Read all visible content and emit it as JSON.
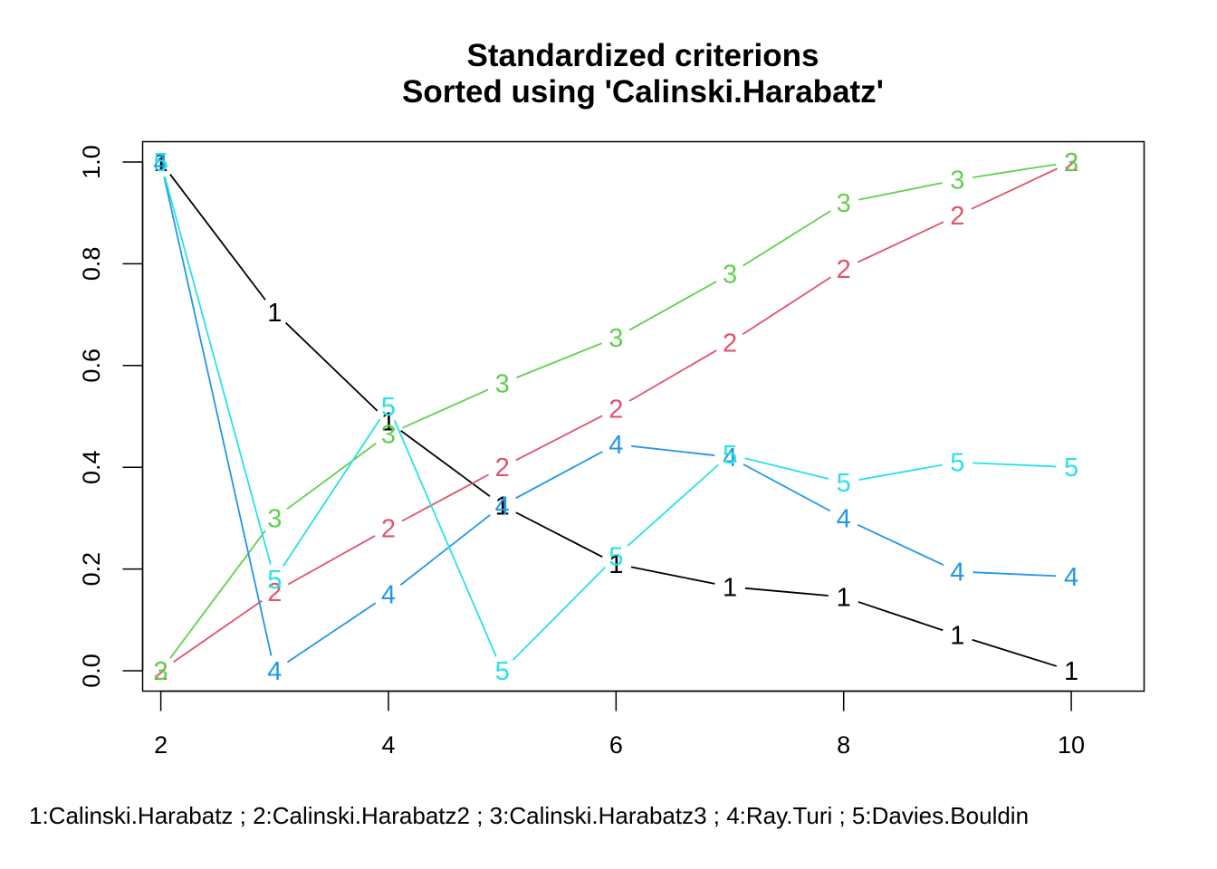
{
  "chart_data": {
    "type": "line",
    "title": "Standardized criterions",
    "subtitle": "Sorted using 'Calinski.Harabatz'",
    "caption": "1:Calinski.Harabatz ; 2:Calinski.Harabatz2 ; 3:Calinski.Harabatz3 ; 4:Ray.Turi ; 5:Davies.Bouldin",
    "x": [
      2,
      3,
      4,
      5,
      6,
      7,
      8,
      9,
      10
    ],
    "xlim": [
      1.84,
      10.64
    ],
    "ylim": [
      -0.04,
      1.04
    ],
    "xticks": [
      2,
      4,
      6,
      8,
      10
    ],
    "yticks": [
      0.0,
      0.2,
      0.4,
      0.6,
      0.8,
      1.0
    ],
    "xtick_labels": [
      "2",
      "4",
      "6",
      "8",
      "10"
    ],
    "ytick_labels": [
      "0.0",
      "0.2",
      "0.4",
      "0.6",
      "0.8",
      "1.0"
    ],
    "grid": false,
    "legend": "none",
    "series": [
      {
        "name": "Calinski.Harabatz",
        "marker": "1",
        "color": "#000000",
        "values": [
          1.0,
          0.705,
          0.49,
          0.325,
          0.21,
          0.165,
          0.145,
          0.07,
          0.0
        ]
      },
      {
        "name": "Calinski.Harabatz2",
        "marker": "2",
        "color": "#DF536B",
        "values": [
          0.0,
          0.155,
          0.28,
          0.4,
          0.515,
          0.645,
          0.79,
          0.895,
          1.0
        ]
      },
      {
        "name": "Calinski.Harabatz3",
        "marker": "3",
        "color": "#61D04F",
        "values": [
          0.0,
          0.3,
          0.465,
          0.565,
          0.655,
          0.78,
          0.92,
          0.965,
          1.0
        ]
      },
      {
        "name": "Ray.Turi",
        "marker": "4",
        "color": "#2297E6",
        "values": [
          1.0,
          0.0,
          0.15,
          0.325,
          0.445,
          0.42,
          0.3,
          0.195,
          0.185
        ]
      },
      {
        "name": "Davies.Bouldin",
        "marker": "5",
        "color": "#28E2E5",
        "values": [
          1.0,
          0.18,
          0.52,
          0.0,
          0.225,
          0.425,
          0.37,
          0.41,
          0.4
        ]
      }
    ]
  }
}
